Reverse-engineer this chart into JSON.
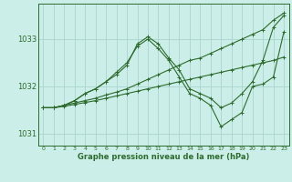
{
  "title": "Graphe pression niveau de la mer (hPa)",
  "bg_color": "#cceee8",
  "grid_color": "#aad4ce",
  "line_color": "#2d6b2d",
  "xlim": [
    -0.5,
    23.5
  ],
  "ylim": [
    1030.75,
    1033.75
  ],
  "yticks": [
    1031,
    1032,
    1033
  ],
  "xticks": [
    0,
    1,
    2,
    3,
    4,
    5,
    6,
    7,
    8,
    9,
    10,
    11,
    12,
    13,
    14,
    15,
    16,
    17,
    18,
    19,
    20,
    21,
    22,
    23
  ],
  "series": [
    [
      1031.55,
      1031.55,
      1031.6,
      1031.7,
      1031.85,
      1031.95,
      1032.1,
      1032.25,
      1032.45,
      1032.9,
      1033.05,
      1032.9,
      1032.6,
      1032.35,
      1031.95,
      1031.85,
      1031.75,
      1031.55,
      1031.65,
      1031.85,
      1032.1,
      1032.55,
      1033.25,
      1033.5
    ],
    [
      1031.55,
      1031.55,
      1031.6,
      1031.65,
      1031.7,
      1031.75,
      1031.82,
      1031.88,
      1031.95,
      1032.05,
      1032.15,
      1032.25,
      1032.35,
      1032.45,
      1032.55,
      1032.6,
      1032.7,
      1032.8,
      1032.9,
      1033.0,
      1033.1,
      1033.2,
      1033.4,
      1033.55
    ],
    [
      1031.55,
      1031.55,
      1031.58,
      1031.62,
      1031.66,
      1031.7,
      1031.75,
      1031.8,
      1031.85,
      1031.9,
      1031.95,
      1032.0,
      1032.05,
      1032.1,
      1032.15,
      1032.2,
      1032.25,
      1032.3,
      1032.35,
      1032.4,
      1032.45,
      1032.5,
      1032.55,
      1032.62
    ],
    [
      1031.55,
      1031.55,
      1031.6,
      1031.7,
      1031.85,
      1031.95,
      1032.1,
      1032.3,
      1032.5,
      1032.85,
      1033.0,
      1032.8,
      1032.55,
      1032.2,
      1031.85,
      1031.75,
      1031.6,
      1031.15,
      1031.3,
      1031.45,
      1032.0,
      1032.05,
      1032.2,
      1033.15
    ]
  ]
}
